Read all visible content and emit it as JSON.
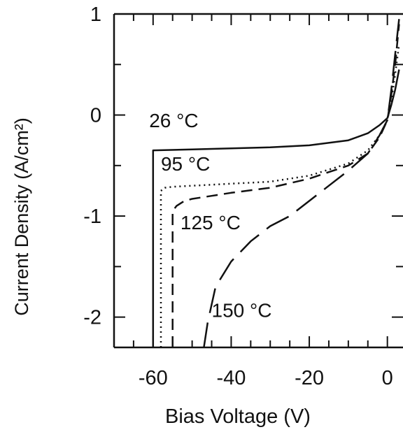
{
  "chart_data": {
    "type": "line",
    "xlabel": "Bias Voltage (V)",
    "ylabel": "Current Density (A/cm²)",
    "xlim": [
      -70,
      4
    ],
    "ylim": [
      -2.3,
      1
    ],
    "x_ticks": [
      -60,
      -40,
      -20,
      0
    ],
    "x_tick_labels": [
      "-60",
      "-40",
      "-20",
      "0"
    ],
    "y_ticks": [
      1,
      0,
      -1,
      -2
    ],
    "y_tick_labels": [
      "1",
      "0",
      "-1",
      "-2"
    ],
    "grid": false,
    "legend": "none",
    "series": [
      {
        "name": "26 °C",
        "line_style": "solid",
        "x": [
          -60,
          -60,
          -50,
          -40,
          -30,
          -20,
          -10,
          -5,
          -2,
          0,
          1,
          2,
          3
        ],
        "y": [
          -2.3,
          -0.35,
          -0.34,
          -0.33,
          -0.32,
          -0.3,
          -0.25,
          -0.18,
          -0.1,
          -0.03,
          0.1,
          0.25,
          0.45
        ]
      },
      {
        "name": "95 °C",
        "line_style": "dotted",
        "x": [
          -58,
          -58,
          -57,
          -55,
          -50,
          -40,
          -30,
          -20,
          -10,
          -5,
          -2,
          0,
          1,
          2,
          3
        ],
        "y": [
          -2.3,
          -0.75,
          -0.72,
          -0.71,
          -0.7,
          -0.68,
          -0.66,
          -0.6,
          -0.48,
          -0.35,
          -0.2,
          -0.05,
          0.15,
          0.4,
          0.7
        ]
      },
      {
        "name": "125 °C",
        "line_style": "dashed",
        "x": [
          -55,
          -55,
          -54,
          -52,
          -50,
          -45,
          -40,
          -30,
          -20,
          -10,
          -5,
          -2,
          0,
          1,
          2,
          3
        ],
        "y": [
          -2.3,
          -0.95,
          -0.9,
          -0.85,
          -0.83,
          -0.8,
          -0.77,
          -0.72,
          -0.63,
          -0.5,
          -0.38,
          -0.22,
          -0.05,
          0.2,
          0.5,
          0.9
        ]
      },
      {
        "name": "150 °C",
        "line_style": "long-dash",
        "x": [
          -47,
          -46,
          -44,
          -40,
          -35,
          -30,
          -25,
          -20,
          -15,
          -10,
          -5,
          -2,
          0,
          1,
          2,
          3
        ],
        "y": [
          -2.3,
          -2.05,
          -1.7,
          -1.45,
          -1.25,
          -1.1,
          -1.0,
          -0.85,
          -0.7,
          -0.55,
          -0.38,
          -0.2,
          -0.05,
          0.25,
          0.6,
          0.95
        ]
      }
    ],
    "annotations": [
      {
        "text": "26 °C",
        "x": -61,
        "y": -0.12
      },
      {
        "text": "95 °C",
        "x": -58,
        "y": -0.55
      },
      {
        "text": "125 °C",
        "x": -53,
        "y": -1.13
      },
      {
        "text": "150 °C",
        "x": -45,
        "y": -2.0
      }
    ]
  }
}
